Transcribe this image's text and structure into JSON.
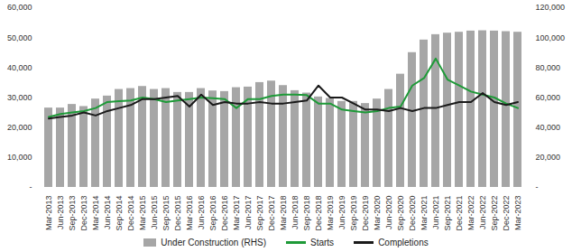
{
  "chart_data": {
    "type": "bar",
    "categories": [
      "Mar-2013",
      "Jun-2013",
      "Sep-2013",
      "Dec-2013",
      "Mar-2014",
      "Jun-2014",
      "Sep-2014",
      "Dec-2014",
      "Mar-2015",
      "Jun-2015",
      "Sep-2015",
      "Dec-2015",
      "Mar-2016",
      "Jun-2016",
      "Sep-2016",
      "Dec-2016",
      "Mar-2017",
      "Jun-2017",
      "Sep-2017",
      "Dec-2017",
      "Mar-2018",
      "Jun-2018",
      "Sep-2018",
      "Dec-2018",
      "Mar-2019",
      "Jun-2019",
      "Sep-2019",
      "Dec-2019",
      "Mar-2020",
      "Jun-2020",
      "Sep-2020",
      "Dec-2020",
      "Mar-2021",
      "Jun-2021",
      "Sep-2021",
      "Dec-2021",
      "Mar-2022",
      "Jun-2022",
      "Sep-2022",
      "Dec-2022",
      "Mar-2023"
    ],
    "series": [
      {
        "name": "Under Construction (RHS)",
        "type": "bar",
        "axis": "y2",
        "color": "#a6a6a6",
        "values": [
          53000,
          53000,
          55400,
          54000,
          59000,
          61000,
          65400,
          66000,
          67400,
          65400,
          66000,
          63400,
          63400,
          66000,
          64400,
          64000,
          66600,
          67000,
          70000,
          71000,
          68000,
          64600,
          63000,
          60400,
          59400,
          57400,
          57400,
          56000,
          59000,
          65400,
          75600,
          90000,
          98400,
          102000,
          103000,
          103600,
          104400,
          104600,
          104400,
          104000,
          103600
        ]
      },
      {
        "name": "Starts",
        "type": "line",
        "color": "#1e9a38",
        "values": [
          23500,
          24500,
          25000,
          25500,
          26500,
          28500,
          28800,
          29000,
          30000,
          29500,
          28500,
          29000,
          29500,
          30000,
          29800,
          29500,
          26500,
          29500,
          29500,
          30500,
          31000,
          31000,
          30800,
          28000,
          28000,
          26000,
          25500,
          25000,
          25500,
          26500,
          27000,
          34000,
          36500,
          43000,
          36000,
          34000,
          32000,
          31000,
          30000,
          28000,
          26500
        ]
      },
      {
        "name": "Completions",
        "type": "line",
        "color": "#1a1a1a",
        "values": [
          23000,
          23500,
          24000,
          25000,
          24000,
          25500,
          26500,
          27500,
          29500,
          29500,
          30000,
          30500,
          27000,
          31000,
          27500,
          28500,
          28000,
          28000,
          28500,
          28000,
          28000,
          28500,
          29000,
          34000,
          30000,
          30000,
          28000,
          26000,
          26000,
          25500,
          26500,
          25500,
          26500,
          26500,
          27500,
          28500,
          28500,
          31500,
          28500,
          27500,
          28500
        ]
      }
    ],
    "ylim": [
      0,
      60000
    ],
    "yticks": [
      {
        "value": 0,
        "label": "-"
      },
      {
        "value": 10000,
        "label": "10,000"
      },
      {
        "value": 20000,
        "label": "20,000"
      },
      {
        "value": 30000,
        "label": "30,000"
      },
      {
        "value": 40000,
        "label": "40,000"
      },
      {
        "value": 50000,
        "label": "50,000"
      },
      {
        "value": 60000,
        "label": "60,000"
      }
    ],
    "y2lim": [
      0,
      120000
    ],
    "y2ticks": [
      {
        "value": 0,
        "label": "-"
      },
      {
        "value": 20000,
        "label": "20,000"
      },
      {
        "value": 40000,
        "label": "40,000"
      },
      {
        "value": 60000,
        "label": "60,000"
      },
      {
        "value": 80000,
        "label": "80,000"
      },
      {
        "value": 100000,
        "label": "100,000"
      },
      {
        "value": 120000,
        "label": "120,000"
      }
    ],
    "grid": false,
    "legend": "bottom"
  }
}
